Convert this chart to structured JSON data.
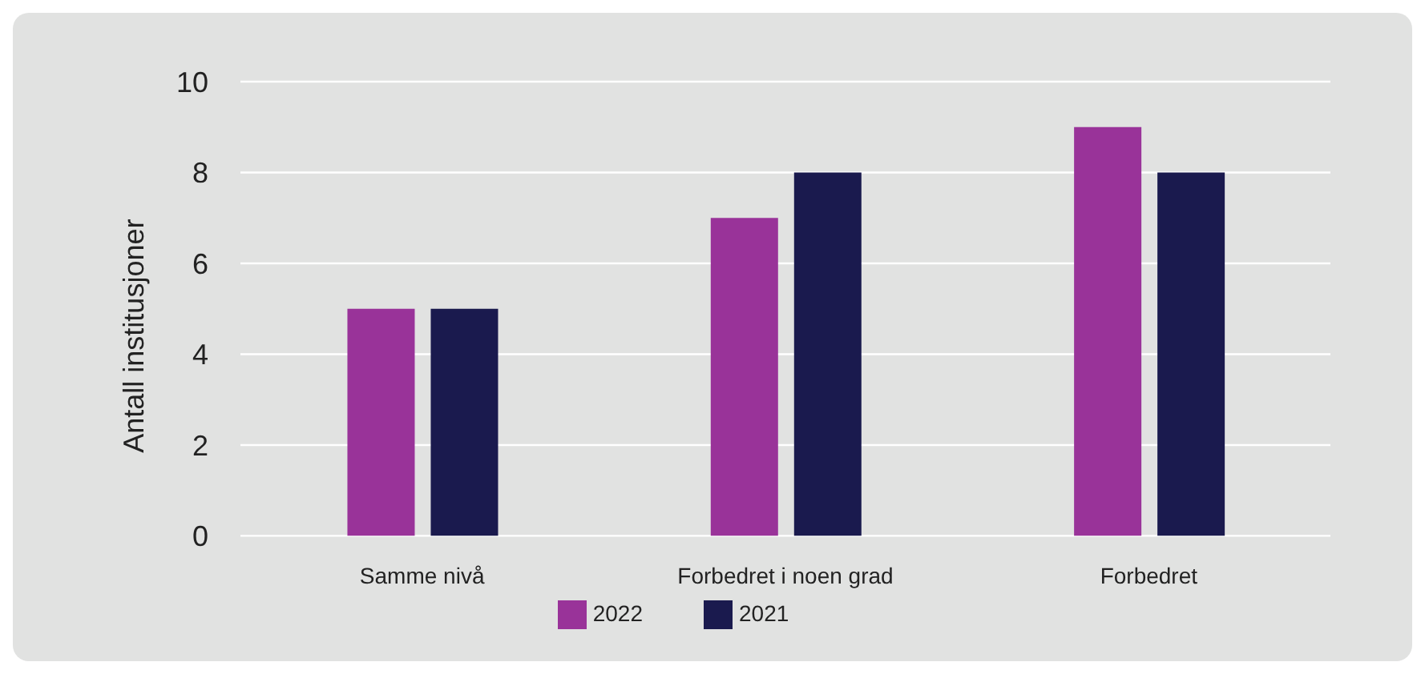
{
  "chart_data": {
    "type": "bar",
    "ylabel": "Antall institusjoner",
    "categories": [
      "Samme nivå",
      "Forbedret i noen grad",
      "Forbedret"
    ],
    "series": [
      {
        "name": "2022",
        "color": "#993399",
        "values": [
          5,
          7,
          9
        ]
      },
      {
        "name": "2021",
        "color": "#1a1a4e",
        "values": [
          5,
          8,
          8
        ]
      }
    ],
    "ylim": [
      0,
      10
    ],
    "yticks": [
      0,
      2,
      4,
      6,
      8,
      10
    ],
    "grid": "y",
    "legend": "bottom"
  }
}
